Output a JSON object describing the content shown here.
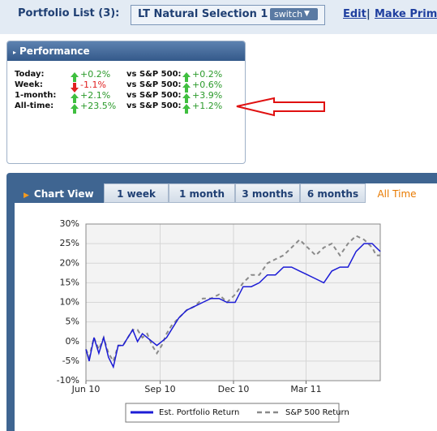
{
  "header": {
    "portfolio_list_label": "Portfolio List (3):",
    "selected_portfolio": "LT Natural Selection 1",
    "switch_button": "switch",
    "links": [
      "Edit",
      "Make Prima"
    ]
  },
  "performance": {
    "title": "Performance",
    "rows": [
      {
        "label": "Today:",
        "change": "+0.2%",
        "direction": "up",
        "benchmark_label": "vs S&P 500:",
        "benchmark_change": "+0.2%",
        "benchmark_direction": "up"
      },
      {
        "label": "Week:",
        "change": "-1.1%",
        "direction": "down",
        "benchmark_label": "vs S&P 500:",
        "benchmark_change": "+0.6%",
        "benchmark_direction": "up"
      },
      {
        "label": "1-month:",
        "change": "+2.1%",
        "direction": "up",
        "benchmark_label": "vs S&P 500:",
        "benchmark_change": "+3.9%",
        "benchmark_direction": "up"
      },
      {
        "label": "All-time:",
        "change": "+23.5%",
        "direction": "up",
        "benchmark_label": "vs S&P 500:",
        "benchmark_change": "+1.2%",
        "benchmark_direction": "up"
      }
    ]
  },
  "chart_view": {
    "title": "Chart View",
    "tabs": [
      "1 week",
      "1 month",
      "3 months",
      "6 months",
      "All Time"
    ],
    "active_tab": 4
  },
  "chart_data": {
    "type": "line",
    "x": [
      0,
      4,
      10,
      16,
      22,
      28,
      34,
      40,
      46,
      52,
      58,
      64,
      70,
      76,
      82,
      88,
      94,
      100,
      106,
      115,
      125,
      135,
      145,
      155,
      165,
      175,
      185,
      195,
      205,
      215,
      225,
      235,
      245,
      255,
      265,
      275,
      285,
      295,
      305,
      315,
      325,
      335,
      345,
      355,
      360,
      365
    ],
    "xlim": [
      0,
      365
    ],
    "xticks": [
      {
        "value": 0,
        "label": "Jun 10"
      },
      {
        "value": 92,
        "label": "Sep 10"
      },
      {
        "value": 183,
        "label": "Dec 10"
      },
      {
        "value": 273,
        "label": "Mar 11"
      }
    ],
    "ylim": [
      -10,
      30
    ],
    "yticks": [
      {
        "value": -10,
        "label": "-10%"
      },
      {
        "value": -5,
        "label": "-5%"
      },
      {
        "value": 0,
        "label": "0%"
      },
      {
        "value": 5,
        "label": "5%"
      },
      {
        "value": 10,
        "label": "10%"
      },
      {
        "value": 15,
        "label": "15%"
      },
      {
        "value": 20,
        "label": "20%"
      },
      {
        "value": 25,
        "label": "25%"
      },
      {
        "value": 30,
        "label": "30%"
      }
    ],
    "grid": true,
    "legend": "bottom",
    "series": [
      {
        "name": "Est. Portfolio Return",
        "color": "#1c1cd6",
        "dashed": false,
        "values": [
          -2,
          -5,
          1,
          -3,
          1,
          -4,
          -6.5,
          -1,
          -1,
          1,
          3,
          0,
          2,
          1,
          0,
          -1,
          0,
          1,
          3,
          6,
          8,
          9,
          10,
          11,
          11,
          10,
          10,
          14,
          14,
          15,
          17,
          17,
          19,
          19,
          18,
          17,
          16,
          15,
          18,
          19,
          19,
          23,
          25,
          25,
          24,
          23
        ]
      },
      {
        "name": "S&P 500 Return",
        "color": "#8a8a8a",
        "dashed": true,
        "values": [
          -2,
          -4,
          1,
          -2,
          1,
          -3,
          -5,
          -1,
          -1,
          1,
          3,
          3,
          1,
          2,
          -1,
          -3,
          -1,
          2,
          4,
          6,
          8,
          9,
          11,
          11,
          12,
          10,
          12,
          15,
          17,
          17,
          20,
          21,
          22,
          24,
          26,
          24,
          22,
          24,
          25,
          22,
          25,
          27,
          26,
          24,
          22,
          22
        ]
      }
    ]
  }
}
